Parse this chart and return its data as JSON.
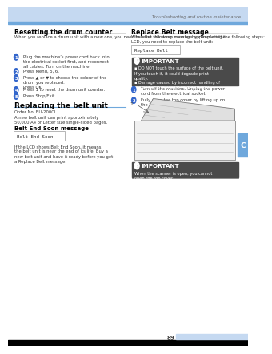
{
  "page_title": "Troubleshooting and routine maintenance",
  "page_number": "89",
  "bg_color": "#ffffff",
  "header_bar_color": "#c5d9f1",
  "header_line_color": "#6fa8dc",
  "footer_bar_color": "#000000",
  "footer_page_color": "#c5d9f1",
  "tab_color": "#6fa8dc",
  "left": {
    "heading": "Resetting the drum counter",
    "intro": "When you replace a drum unit with a new one, you need to reset the drum counter by completing the following steps:",
    "step1": "Plug the machine’s power cord back into\nthe electrical socket first, and reconnect\nall cables. Turn on the machine.",
    "step2": "Press Menu, 5, 6.",
    "step3": "Press ▲ or ▼ to choose the colour of the\ndrum you replaced.\nPress OK.",
    "step4": "Press 1 to reset the drum unit counter.",
    "step5": "Press Stop/Exit.",
    "section2_heading": "Replacing the belt unit",
    "order_no": "Order No. BU-200CL",
    "capacity": "A new belt unit can print approximately\n50,000 A4 or Letter size single-sided pages.",
    "belt_end_heading": "Belt End Soon message",
    "belt_end_lcd": "Belt End Soon",
    "belt_end_text": "If the LCD shows Belt End Soon, it means\nthe belt unit is near the end of its life. Buy a\nnew belt unit and have it ready before you get\na Replace Belt message."
  },
  "right": {
    "heading": "Replace Belt message",
    "intro": "When the following message appears on the\nLCD, you need to replace the belt unit:",
    "replace_lcd": "Replace Belt",
    "imp1_item1": "DO NOT touch the surface of the belt unit.\nIf you touch it, it could degrade print\nquality.",
    "imp1_item2": "Damage caused by incorrect handling of\nthe belt unit may void your warranty.",
    "rstep1": "Turn off the machine. Unplug the power\ncord from the electrical socket.",
    "rstep2": "Fully open the top cover by lifting up on\nthe handle (①).",
    "imp2_text": "When the scanner is open, you cannot\nopen the top cover."
  }
}
